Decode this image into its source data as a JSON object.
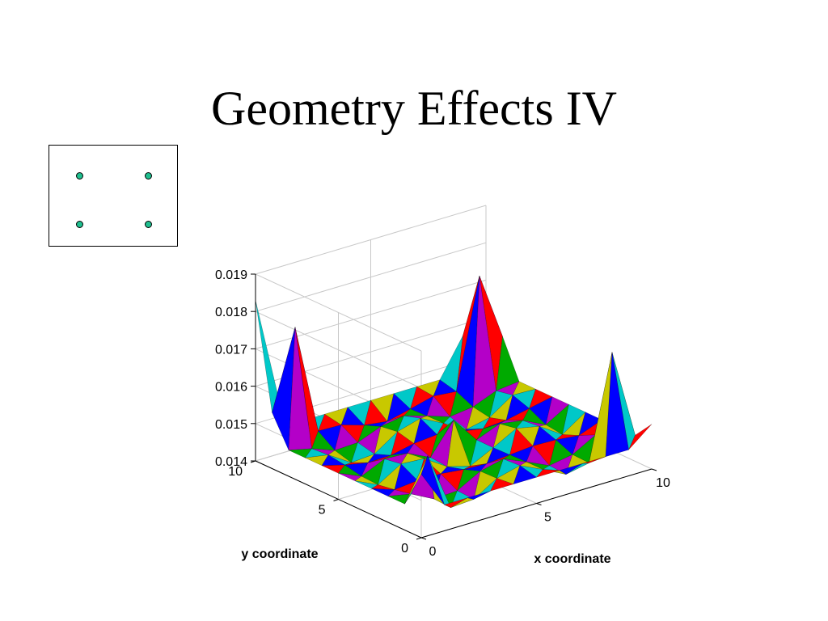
{
  "slide": {
    "title": "Geometry Effects IV"
  },
  "inset": {
    "dot_color": "#1fbf8f",
    "dots": [
      {
        "col": 0,
        "row": 0
      },
      {
        "col": 1,
        "row": 0
      },
      {
        "col": 0,
        "row": 1
      },
      {
        "col": 1,
        "row": 1
      }
    ]
  },
  "chart_data": {
    "type": "surface3d",
    "title": "",
    "xlabel": "x coordinate",
    "ylabel": "y coordinate",
    "zlabel": "",
    "xlim": [
      0,
      10
    ],
    "ylim": [
      0,
      10
    ],
    "zlim": [
      0.014,
      0.019
    ],
    "x_ticks": [
      "0",
      "5",
      "10"
    ],
    "y_ticks": [
      "0",
      "5",
      "10"
    ],
    "z_ticks": [
      "0.014",
      "0.015",
      "0.016",
      "0.017",
      "0.018",
      "0.019"
    ],
    "grid": true,
    "face_colors": [
      "#0000ff",
      "#00aa00",
      "#c8c800",
      "#ff0000",
      "#b400c8",
      "#00c8c8"
    ],
    "peaks_note_values": {
      "corner_x0_y0": 0.0157,
      "corner_x10_y0": 0.0143,
      "corner_x0_y10": 0.0183,
      "corner_x10_y10": 0.0165,
      "near_corner_peaks": 0.0176,
      "baseline": 0.0145
    }
  }
}
